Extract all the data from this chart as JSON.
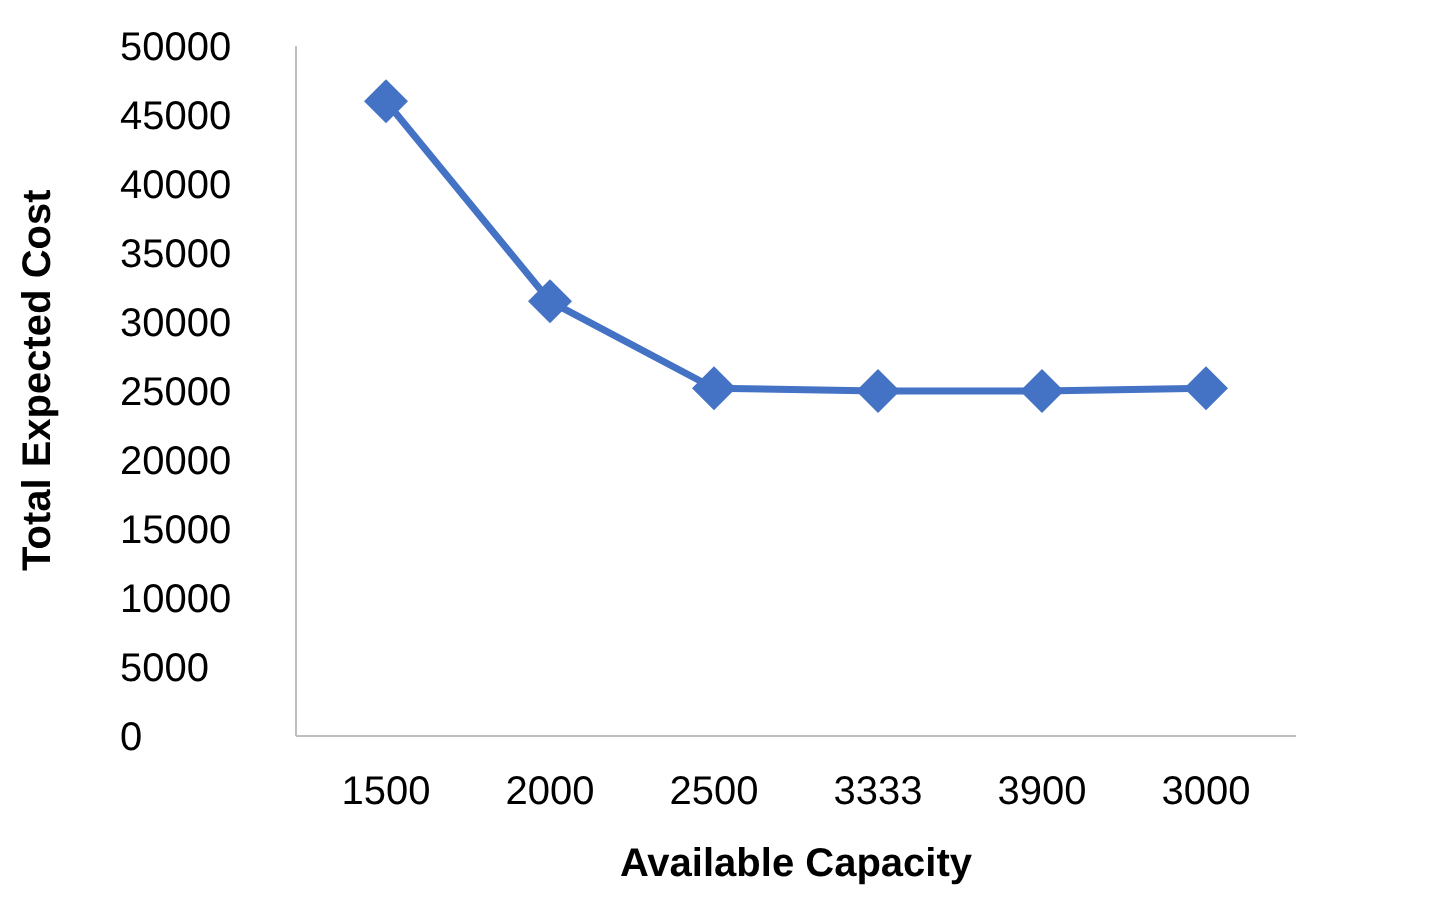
{
  "chart_data": {
    "type": "line",
    "xlabel": "Available Capacity",
    "ylabel": "Total Expected Cost",
    "categories": [
      "1500",
      "2000",
      "2500",
      "3333",
      "3900",
      "3000"
    ],
    "series": [
      {
        "color": "#4472c4",
        "values": [
          46000,
          31500,
          25200,
          25000,
          25000,
          25200
        ]
      }
    ],
    "ylim": [
      0,
      50000
    ],
    "yticks": [
      0,
      5000,
      10000,
      15000,
      20000,
      25000,
      30000,
      35000,
      40000,
      45000,
      50000
    ],
    "grid": false,
    "legend": false,
    "marker": "diamond",
    "line_style": "solid"
  }
}
